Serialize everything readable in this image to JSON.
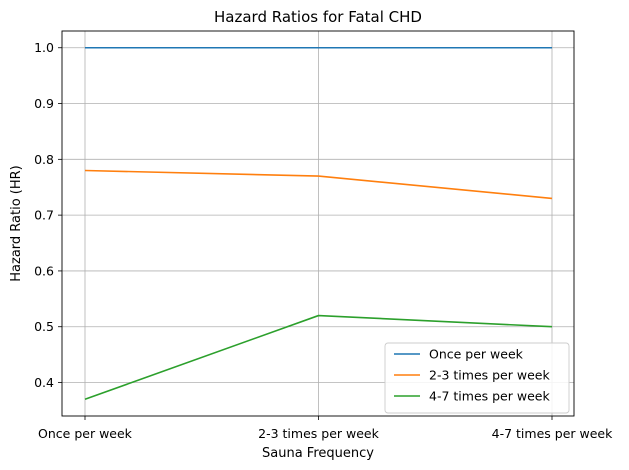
{
  "chart_data": {
    "type": "line",
    "title": "Hazard Ratios for Fatal CHD",
    "xlabel": "Sauna Frequency",
    "ylabel": "Hazard Ratio (HR)",
    "categories": [
      "Once per week",
      "2-3 times per week",
      "4-7 times per week"
    ],
    "ylim": [
      0.34,
      1.03
    ],
    "yticks": [
      "0.4",
      "0.5",
      "0.6",
      "0.7",
      "0.8",
      "0.9",
      "1.0"
    ],
    "grid": true,
    "legend_position": "lower-right",
    "series": [
      {
        "name": "Once per week",
        "values": [
          1.0,
          1.0,
          1.0
        ],
        "color": "#1f77b4"
      },
      {
        "name": "2-3 times per week",
        "values": [
          0.78,
          0.77,
          0.73
        ],
        "color": "#ff7f0e"
      },
      {
        "name": "4-7 times per week",
        "values": [
          0.37,
          0.52,
          0.5
        ],
        "color": "#2ca02c"
      }
    ]
  }
}
